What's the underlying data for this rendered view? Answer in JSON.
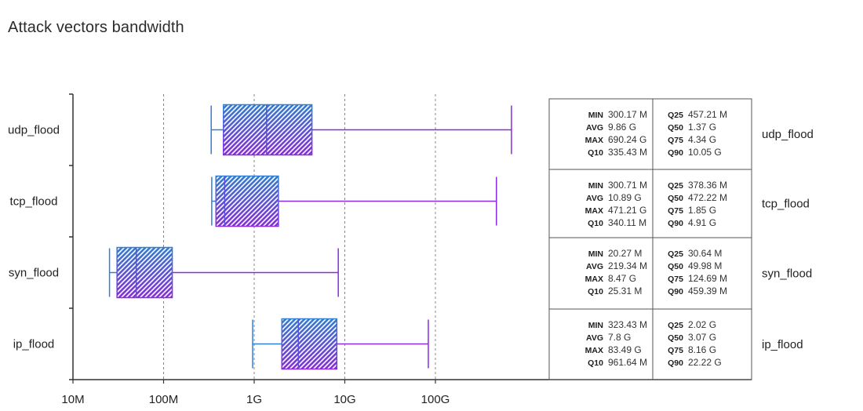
{
  "chart_data": {
    "type": "box",
    "title": "Attack vectors bandwidth",
    "x_scale": "log",
    "x_ticks": [
      {
        "value": 10000000,
        "label": "10M"
      },
      {
        "value": 100000000,
        "label": "100M"
      },
      {
        "value": 1000000000,
        "label": "1G"
      },
      {
        "value": 10000000000,
        "label": "10G"
      },
      {
        "value": 100000000000,
        "label": "100G"
      }
    ],
    "xlim": [
      10000000,
      10000000000000
    ],
    "grid": "vertical dashed",
    "colors": {
      "box_top": "#2f7fd6",
      "box_bottom": "#8a2be2",
      "axis": "#333333",
      "grid": "#888888"
    },
    "categories": [
      "udp_flood",
      "tcp_flood",
      "syn_flood",
      "ip_flood"
    ],
    "boxes": [
      {
        "name": "udp_flood",
        "whisker_low": 335430000,
        "q1": 457210000,
        "median": 1370000000,
        "q3": 4340000000,
        "whisker_high": 690240000000
      },
      {
        "name": "tcp_flood",
        "whisker_low": 340110000,
        "q1": 378360000,
        "median": 472220000,
        "q3": 1850000000,
        "whisker_high": 471210000000
      },
      {
        "name": "syn_flood",
        "whisker_low": 25310000,
        "q1": 30640000,
        "median": 49980000,
        "q3": 124690000,
        "whisker_high": 8470000000
      },
      {
        "name": "ip_flood",
        "whisker_low": 961640000,
        "q1": 2020000000,
        "median": 3070000000,
        "q3": 8160000000,
        "whisker_high": 83490000000
      }
    ],
    "stats_table": [
      {
        "name": "udp_flood",
        "left": [
          [
            "MIN",
            "300.17 M"
          ],
          [
            "AVG",
            "9.86 G"
          ],
          [
            "MAX",
            "690.24 G"
          ],
          [
            "Q10",
            "335.43 M"
          ]
        ],
        "right": [
          [
            "Q25",
            "457.21 M"
          ],
          [
            "Q50",
            "1.37 G"
          ],
          [
            "Q75",
            "4.34 G"
          ],
          [
            "Q90",
            "10.05 G"
          ]
        ]
      },
      {
        "name": "tcp_flood",
        "left": [
          [
            "MIN",
            "300.71 M"
          ],
          [
            "AVG",
            "10.89 G"
          ],
          [
            "MAX",
            "471.21 G"
          ],
          [
            "Q10",
            "340.11 M"
          ]
        ],
        "right": [
          [
            "Q25",
            "378.36 M"
          ],
          [
            "Q50",
            "472.22 M"
          ],
          [
            "Q75",
            "1.85 G"
          ],
          [
            "Q90",
            "4.91 G"
          ]
        ]
      },
      {
        "name": "syn_flood",
        "left": [
          [
            "MIN",
            "20.27 M"
          ],
          [
            "AVG",
            "219.34 M"
          ],
          [
            "MAX",
            "8.47 G"
          ],
          [
            "Q10",
            "25.31 M"
          ]
        ],
        "right": [
          [
            "Q25",
            "30.64 M"
          ],
          [
            "Q50",
            "49.98 M"
          ],
          [
            "Q75",
            "124.69 M"
          ],
          [
            "Q90",
            "459.39 M"
          ]
        ]
      },
      {
        "name": "ip_flood",
        "left": [
          [
            "MIN",
            "323.43 M"
          ],
          [
            "AVG",
            "7.8 G"
          ],
          [
            "MAX",
            "83.49 G"
          ],
          [
            "Q10",
            "961.64 M"
          ]
        ],
        "right": [
          [
            "Q25",
            "2.02 G"
          ],
          [
            "Q50",
            "3.07 G"
          ],
          [
            "Q75",
            "8.16 G"
          ],
          [
            "Q90",
            "22.22 G"
          ]
        ]
      }
    ]
  }
}
